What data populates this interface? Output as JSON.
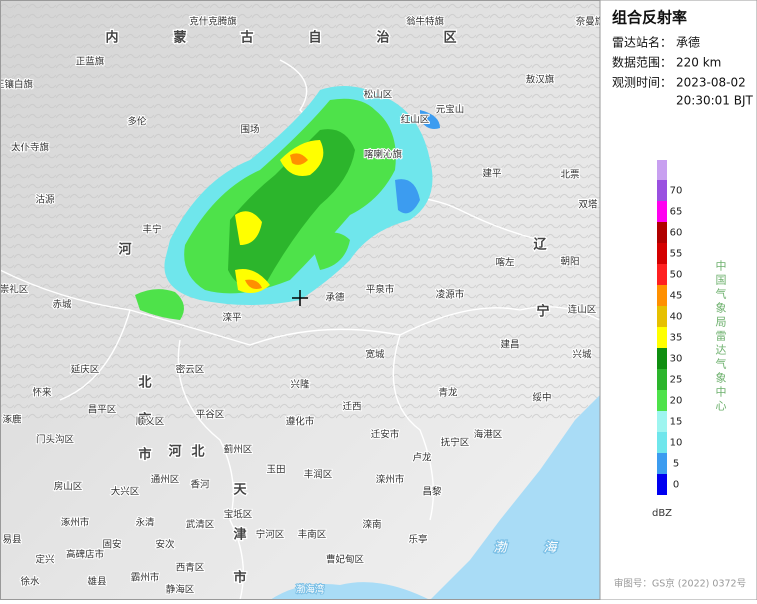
{
  "map": {
    "region_labels": [
      "内",
      "蒙",
      "古",
      "自",
      "治",
      "区",
      "河",
      "北",
      "京",
      "市",
      "河",
      "北",
      "天",
      "津",
      "市",
      "辽",
      "宁",
      "渤",
      "海"
    ],
    "labels": [
      "克什克腾旗",
      "翁牛特旗",
      "奈曼旗",
      "正蓝旗",
      "敖汉旗",
      "正镶白旗",
      "多伦",
      "围场",
      "松山区",
      "红山区",
      "元宝山",
      "太仆寺旗",
      "喀喇沁旗",
      "建平",
      "北票",
      "沽源",
      "丰宁",
      "双塔",
      "朝阳",
      "喀左",
      "崇礼区",
      "赤城",
      "承德",
      "平泉市",
      "凌源市",
      "滦平",
      "连山区",
      "密云区",
      "延庆区",
      "宽城",
      "建昌",
      "兴城",
      "怀来",
      "兴隆",
      "青龙",
      "绥中",
      "昌平区",
      "顺义区",
      "平谷区",
      "遵化市",
      "迁西",
      "涿鹿",
      "门头沟区",
      "蓟州区",
      "迁安市",
      "抚宁区",
      "海港区",
      "卢龙",
      "通州区",
      "香河",
      "玉田",
      "丰润区",
      "滦州市",
      "房山区",
      "大兴区",
      "宝坻区",
      "昌黎",
      "涿州市",
      "永清",
      "武清区",
      "宁河区",
      "丰南区",
      "滦南",
      "乐亭",
      "定兴",
      "高碑店市",
      "固安",
      "安次",
      "曹妃甸区",
      "霸州市",
      "静海区",
      "西青区",
      "雄县",
      "徐水",
      "易县",
      "渤海湾"
    ]
  },
  "panel": {
    "title": "组合反射率",
    "station_label": "雷达站名：",
    "station": "承德",
    "range_label": "数据范围：",
    "range": "220 km",
    "time_label": "观测时间：",
    "date": "2023-08-02",
    "time": "20:30:01 BJT",
    "agency": "中国气象局雷达气象中心",
    "unit": "dBZ"
  },
  "legend": [
    {
      "value": 0,
      "color": "#0000f0"
    },
    {
      "value": 5,
      "color": "#3c9cf0"
    },
    {
      "value": 10,
      "color": "#6fe6ec"
    },
    {
      "value": 15,
      "color": "#9ef5f0"
    },
    {
      "value": 20,
      "color": "#4ee24a"
    },
    {
      "value": 25,
      "color": "#2cb52c"
    },
    {
      "value": 30,
      "color": "#0f8f10"
    },
    {
      "value": 35,
      "color": "#ffff00"
    },
    {
      "value": 40,
      "color": "#e6c000"
    },
    {
      "value": 45,
      "color": "#ff9000"
    },
    {
      "value": 50,
      "color": "#ff2020"
    },
    {
      "value": 55,
      "color": "#d40000"
    },
    {
      "value": 60,
      "color": "#b00000"
    },
    {
      "value": 65,
      "color": "#ff00f0"
    },
    {
      "value": 70,
      "color": "#9a50e0"
    }
  ],
  "footer": "审图号：GS京 (2022) 0372号"
}
